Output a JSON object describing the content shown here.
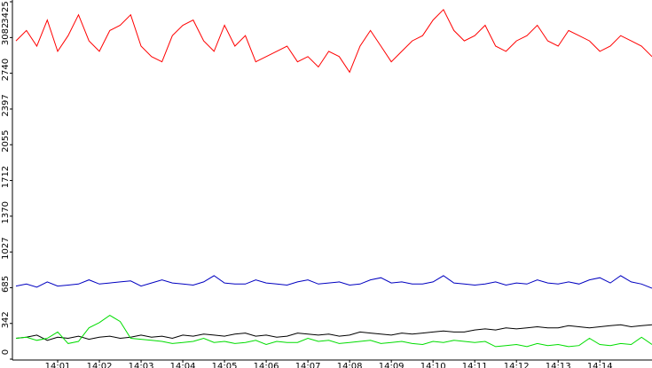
{
  "chart_data": {
    "type": "line",
    "categories": [
      null,
      null,
      null,
      null,
      "14:01",
      null,
      null,
      null,
      "14:02",
      null,
      null,
      null,
      "14:03",
      null,
      null,
      null,
      "14:04",
      null,
      null,
      null,
      "14:05",
      null,
      null,
      null,
      "14:06",
      null,
      null,
      null,
      "14:07",
      null,
      null,
      null,
      "14:08",
      null,
      null,
      null,
      "14:09",
      null,
      null,
      null,
      "14:10",
      null,
      null,
      null,
      "14:11",
      null,
      null,
      null,
      "14:12",
      null,
      null,
      null,
      "14:13",
      null,
      null,
      null,
      "14:14",
      null,
      null,
      null,
      null,
      null
    ],
    "ylim": [
      0,
      3425
    ],
    "yticks": [
      0,
      342,
      685,
      1027,
      1370,
      1712,
      2055,
      2397,
      2740,
      3082,
      3425
    ],
    "grid": false,
    "series": [
      {
        "color": "#ff0000",
        "values": [
          3050,
          3150,
          3000,
          3250,
          2950,
          3100,
          3300,
          3050,
          2950,
          3150,
          3200,
          3300,
          3000,
          2900,
          2850,
          3100,
          3200,
          3250,
          3050,
          2950,
          3200,
          3000,
          3100,
          2850,
          2900,
          2950,
          3000,
          2850,
          2900,
          2800,
          2950,
          2900,
          2750,
          3000,
          3150,
          3000,
          2850,
          2950,
          3050,
          3100,
          3250,
          3350,
          3150,
          3050,
          3100,
          3200,
          3000,
          2950,
          3050,
          3100,
          3200,
          3050,
          3000,
          3150,
          3100,
          3050,
          2950,
          3000,
          3100,
          3050,
          3000,
          2900
        ]
      },
      {
        "color": "#0000c0",
        "values": [
          700,
          720,
          690,
          740,
          700,
          710,
          720,
          760,
          720,
          730,
          740,
          750,
          700,
          730,
          760,
          730,
          720,
          710,
          740,
          800,
          730,
          720,
          720,
          760,
          730,
          720,
          710,
          740,
          760,
          720,
          730,
          740,
          710,
          720,
          760,
          780,
          730,
          740,
          720,
          720,
          740,
          800,
          730,
          720,
          710,
          720,
          740,
          710,
          730,
          720,
          760,
          730,
          720,
          740,
          720,
          760,
          780,
          730,
          800,
          740,
          720,
          680
        ]
      },
      {
        "color": "#000000",
        "values": [
          200,
          210,
          230,
          180,
          210,
          200,
          220,
          190,
          210,
          220,
          200,
          210,
          230,
          210,
          220,
          200,
          230,
          220,
          240,
          230,
          220,
          240,
          250,
          220,
          230,
          210,
          220,
          250,
          240,
          230,
          240,
          220,
          230,
          260,
          250,
          240,
          230,
          250,
          240,
          250,
          260,
          270,
          260,
          260,
          280,
          290,
          280,
          300,
          290,
          300,
          310,
          300,
          300,
          320,
          310,
          300,
          310,
          320,
          330,
          310,
          320,
          330
        ]
      },
      {
        "color": "#00dd00",
        "values": [
          200,
          210,
          180,
          200,
          260,
          150,
          170,
          300,
          350,
          420,
          360,
          200,
          190,
          180,
          170,
          150,
          160,
          170,
          200,
          160,
          170,
          150,
          160,
          180,
          140,
          170,
          160,
          160,
          200,
          170,
          180,
          150,
          160,
          170,
          180,
          150,
          160,
          170,
          150,
          140,
          170,
          160,
          180,
          170,
          160,
          170,
          120,
          130,
          140,
          120,
          150,
          130,
          140,
          120,
          130,
          200,
          140,
          130,
          150,
          140,
          210,
          140
        ]
      }
    ]
  }
}
